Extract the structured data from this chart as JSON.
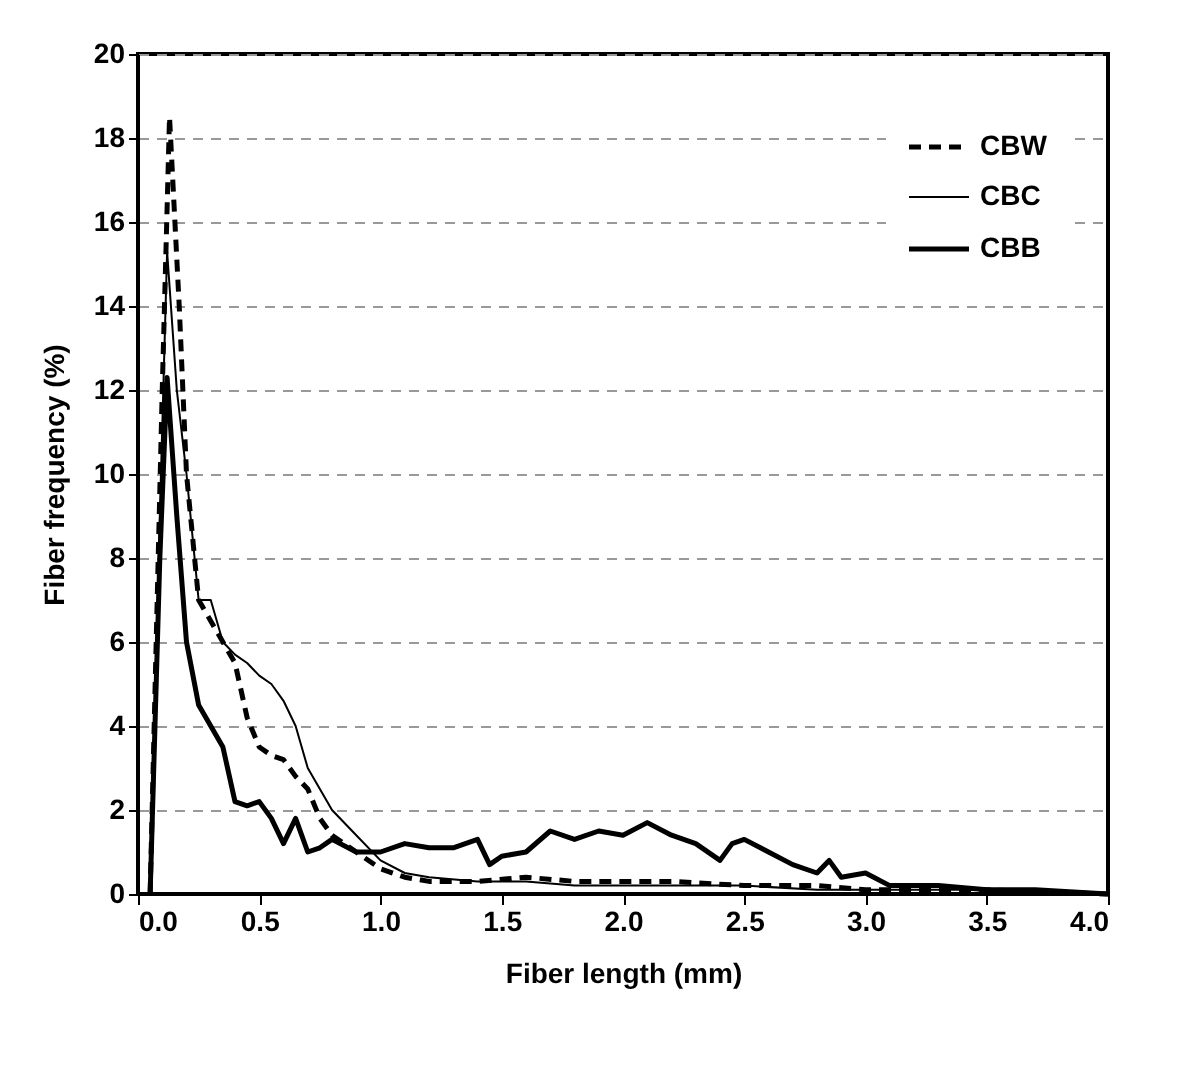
{
  "chart_data": {
    "type": "line",
    "xlabel": "Fiber length (mm)",
    "ylabel": "Fiber frequency (%)",
    "xlim": [
      0,
      4
    ],
    "xticks": [
      {
        "value": 0,
        "label": "0.0"
      },
      {
        "value": 0.5,
        "label": "0.5"
      },
      {
        "value": 1,
        "label": "1.0"
      },
      {
        "value": 1.5,
        "label": "1.5"
      },
      {
        "value": 2,
        "label": "2.0"
      },
      {
        "value": 2.5,
        "label": "2.5"
      },
      {
        "value": 3,
        "label": "3.0"
      },
      {
        "value": 3.5,
        "label": "3.5"
      },
      {
        "value": 4,
        "label": "4.0"
      }
    ],
    "ylim": [
      0,
      20
    ],
    "yticks": [
      0,
      2,
      4,
      6,
      8,
      10,
      12,
      14,
      16,
      18,
      20
    ],
    "grid": "y",
    "legend": "top right",
    "marker": "none",
    "series": [
      {
        "name": "CBW",
        "color": "#000000",
        "line_style": "dashed",
        "x": [
          0.05,
          0.1,
          0.13,
          0.17,
          0.2,
          0.25,
          0.3,
          0.35,
          0.4,
          0.45,
          0.5,
          0.55,
          0.6,
          0.65,
          0.7,
          0.75,
          0.8,
          0.9,
          1.0,
          1.1,
          1.2,
          1.4,
          1.6,
          1.8,
          2.0,
          2.2,
          2.5,
          2.8,
          3.0,
          3.5,
          4.0
        ],
        "values": [
          0,
          12,
          18.5,
          14,
          10,
          7,
          6.5,
          6,
          5.5,
          4.2,
          3.5,
          3.3,
          3.2,
          2.8,
          2.5,
          1.8,
          1.4,
          1,
          0.6,
          0.4,
          0.3,
          0.3,
          0.4,
          0.3,
          0.3,
          0.3,
          0.2,
          0.2,
          0.1,
          0.1,
          0
        ]
      },
      {
        "name": "CBC",
        "color": "#000000",
        "line_style": "solid",
        "x": [
          0.05,
          0.09,
          0.12,
          0.16,
          0.2,
          0.25,
          0.3,
          0.35,
          0.4,
          0.45,
          0.5,
          0.55,
          0.6,
          0.65,
          0.7,
          0.75,
          0.8,
          0.9,
          1.0,
          1.1,
          1.2,
          1.4,
          1.6,
          1.8,
          2.0,
          2.2,
          2.5,
          2.8,
          3.0,
          3.5,
          4.0
        ],
        "values": [
          0,
          9,
          15.3,
          12,
          10,
          7,
          7,
          6,
          5.7,
          5.5,
          5.2,
          5,
          4.6,
          4,
          3,
          2.5,
          2,
          1.4,
          0.8,
          0.5,
          0.4,
          0.3,
          0.3,
          0.2,
          0.2,
          0.2,
          0.2,
          0.1,
          0.1,
          0.1,
          0
        ]
      },
      {
        "name": "CBB",
        "color": "#000000",
        "line_style": "solid",
        "x": [
          0.05,
          0.09,
          0.12,
          0.16,
          0.2,
          0.25,
          0.3,
          0.35,
          0.4,
          0.45,
          0.5,
          0.55,
          0.6,
          0.65,
          0.7,
          0.75,
          0.8,
          0.9,
          1.0,
          1.1,
          1.2,
          1.3,
          1.4,
          1.45,
          1.5,
          1.6,
          1.7,
          1.8,
          1.9,
          2.0,
          2.1,
          2.2,
          2.3,
          2.4,
          2.45,
          2.5,
          2.6,
          2.7,
          2.8,
          2.85,
          2.9,
          3.0,
          3.1,
          3.3,
          3.5,
          3.7,
          4.0
        ],
        "values": [
          0,
          8,
          12.3,
          9,
          6,
          4.5,
          4,
          3.5,
          2.2,
          2.1,
          2.2,
          1.8,
          1.2,
          1.8,
          1,
          1.1,
          1.3,
          1,
          1,
          1.2,
          1.1,
          1.1,
          1.3,
          0.7,
          0.9,
          1,
          1.5,
          1.3,
          1.5,
          1.4,
          1.7,
          1.4,
          1.2,
          0.8,
          1.2,
          1.3,
          1,
          0.7,
          0.5,
          0.8,
          0.4,
          0.5,
          0.2,
          0.2,
          0.1,
          0.1,
          0
        ]
      }
    ]
  }
}
